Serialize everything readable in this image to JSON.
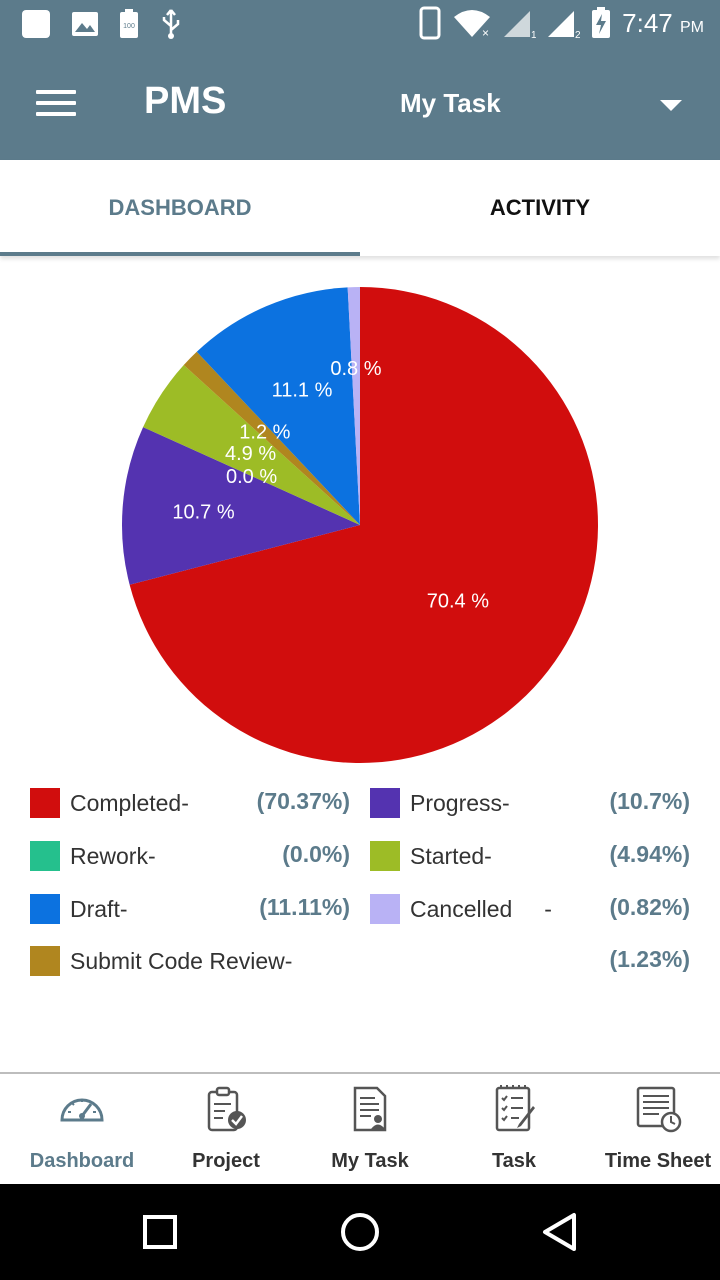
{
  "status_bar": {
    "time": "7:47",
    "ampm": "PM",
    "icons": [
      "notification-square-icon",
      "image-icon",
      "battery-100-icon",
      "usb-icon",
      "phone-icon",
      "wifi-icon",
      "signal-1-icon",
      "signal-2-icon",
      "battery-charging-icon"
    ],
    "battery_text": "100"
  },
  "appbar": {
    "menu_icon": "hamburger-menu-icon",
    "title": "PMS",
    "selector_label": "My Task",
    "caret_icon": "dropdown-caret-icon",
    "bg_color": "#5c7b8b"
  },
  "tabs": [
    {
      "label": "DASHBOARD",
      "active": true
    },
    {
      "label": "ACTIVITY",
      "active": false
    }
  ],
  "chart_data": {
    "type": "pie",
    "start": "12 o'clock, clockwise",
    "slices": [
      {
        "label": "Completed",
        "value": 70.37,
        "slice_label": "70.4 %",
        "color": "#d10d0d"
      },
      {
        "label": "Progress",
        "value": 10.7,
        "slice_label": "10.7 %",
        "color": "#5433b0"
      },
      {
        "label": "Rework",
        "value": 0.0,
        "slice_label": "0.0 %",
        "color": "#25c08d"
      },
      {
        "label": "Started",
        "value": 4.94,
        "slice_label": "4.9 %",
        "color": "#9dbc26"
      },
      {
        "label": "Submit Code Review",
        "value": 1.23,
        "slice_label": "1.2 %",
        "color": "#b0861f"
      },
      {
        "label": "Draft",
        "value": 11.11,
        "slice_label": "11.1 %",
        "color": "#0c72e0"
      },
      {
        "label": "Cancelled",
        "value": 0.82,
        "slice_label": "0.8 %",
        "color": "#b9b2f5"
      }
    ]
  },
  "legend": [
    {
      "label": "Completed-",
      "pct": "(70.37%)",
      "color": "#d10d0d"
    },
    {
      "label": "Progress-",
      "pct": "(10.7%)",
      "color": "#5433b0"
    },
    {
      "label": "Rework-",
      "pct": "(0.0%)",
      "color": "#25c08d"
    },
    {
      "label": "Started-",
      "pct": "(4.94%)",
      "color": "#9dbc26"
    },
    {
      "label": "Draft-",
      "pct": "(11.11%)",
      "color": "#0c72e0"
    },
    {
      "label": "Cancelled     -",
      "pct": "(0.82%)",
      "color": "#b9b2f5"
    },
    {
      "label": "Submit Code Review-",
      "pct": "(1.23%)",
      "color": "#b0861f"
    }
  ],
  "bottom_nav": [
    {
      "label": "Dashboard",
      "icon": "speedometer-icon",
      "active": true
    },
    {
      "label": "Project",
      "icon": "clipboard-check-icon",
      "active": false
    },
    {
      "label": "My Task",
      "icon": "user-document-icon",
      "active": false
    },
    {
      "label": "Task",
      "icon": "checklist-icon",
      "active": false
    },
    {
      "label": "Time Sheet",
      "icon": "timesheet-clock-icon",
      "active": false
    }
  ],
  "system_nav": [
    "recents-square-icon",
    "home-circle-icon",
    "back-triangle-icon"
  ]
}
